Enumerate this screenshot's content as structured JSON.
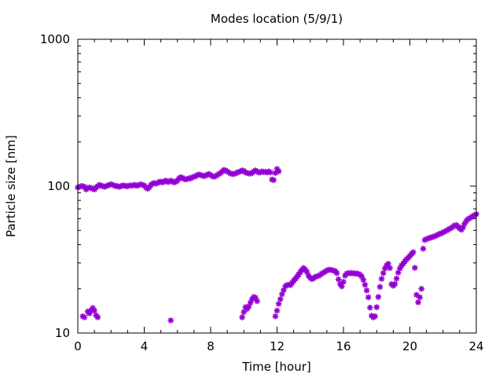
{
  "chart_data": {
    "type": "scatter",
    "title": "Modes location (5/9/1)",
    "xlabel": "Time [hour]",
    "ylabel": "Particle size [nm]",
    "xlim": [
      0,
      24
    ],
    "ylim": [
      10,
      1000
    ],
    "yscale": "log",
    "grid": false,
    "marker_color": "#9400d3",
    "x_ticks": [
      0,
      4,
      8,
      12,
      16,
      20,
      24
    ],
    "x_tick_labels": [
      "0",
      "4",
      "8",
      "12",
      "16",
      "20",
      "24"
    ],
    "y_ticks": [
      10,
      100,
      1000
    ],
    "y_tick_labels": [
      "10",
      "100",
      "1000"
    ],
    "series": [
      {
        "points": [
          [
            0.0,
            98
          ],
          [
            0.1,
            99
          ],
          [
            0.2,
            100
          ],
          [
            0.3,
            100
          ],
          [
            0.4,
            99
          ],
          [
            0.5,
            95
          ],
          [
            0.6,
            97
          ],
          [
            0.7,
            98
          ],
          [
            0.8,
            97
          ],
          [
            0.9,
            96
          ],
          [
            1.0,
            95
          ],
          [
            1.1,
            98
          ],
          [
            1.2,
            100
          ],
          [
            1.3,
            102
          ],
          [
            1.4,
            101
          ],
          [
            1.5,
            100
          ],
          [
            1.6,
            99
          ],
          [
            1.7,
            100
          ],
          [
            1.8,
            101
          ],
          [
            1.9,
            102
          ],
          [
            2.0,
            103
          ],
          [
            2.1,
            102
          ],
          [
            2.2,
            101
          ],
          [
            2.3,
            100
          ],
          [
            2.4,
            100
          ],
          [
            2.5,
            99
          ],
          [
            2.6,
            100
          ],
          [
            2.7,
            101
          ],
          [
            2.8,
            101
          ],
          [
            2.9,
            100
          ],
          [
            3.0,
            100
          ],
          [
            3.1,
            101
          ],
          [
            3.2,
            101
          ],
          [
            3.3,
            101
          ],
          [
            3.4,
            102
          ],
          [
            3.5,
            101
          ],
          [
            3.6,
            101
          ],
          [
            3.7,
            102
          ],
          [
            3.8,
            103
          ],
          [
            3.9,
            102
          ],
          [
            4.0,
            101
          ],
          [
            4.1,
            98
          ],
          [
            4.2,
            96
          ],
          [
            4.3,
            98
          ],
          [
            4.4,
            102
          ],
          [
            4.5,
            104
          ],
          [
            4.6,
            105
          ],
          [
            4.7,
            104
          ],
          [
            4.8,
            105
          ],
          [
            4.9,
            107
          ],
          [
            5.0,
            107
          ],
          [
            5.1,
            106
          ],
          [
            5.2,
            108
          ],
          [
            5.3,
            109
          ],
          [
            5.4,
            107
          ],
          [
            5.5,
            107
          ],
          [
            5.6,
            109
          ],
          [
            5.7,
            108
          ],
          [
            5.8,
            106
          ],
          [
            5.9,
            107
          ],
          [
            6.0,
            109
          ],
          [
            6.1,
            113
          ],
          [
            6.2,
            115
          ],
          [
            6.3,
            114
          ],
          [
            6.4,
            112
          ],
          [
            6.5,
            111
          ],
          [
            6.6,
            112
          ],
          [
            6.7,
            113
          ],
          [
            6.8,
            113
          ],
          [
            6.9,
            115
          ],
          [
            7.0,
            116
          ],
          [
            7.1,
            117
          ],
          [
            7.2,
            119
          ],
          [
            7.3,
            120
          ],
          [
            7.4,
            119
          ],
          [
            7.5,
            118
          ],
          [
            7.6,
            117
          ],
          [
            7.7,
            118
          ],
          [
            7.8,
            120
          ],
          [
            7.9,
            121
          ],
          [
            8.0,
            119
          ],
          [
            8.1,
            117
          ],
          [
            8.2,
            116
          ],
          [
            8.3,
            117
          ],
          [
            8.4,
            119
          ],
          [
            8.5,
            121
          ],
          [
            8.6,
            123
          ],
          [
            8.7,
            126
          ],
          [
            8.8,
            129
          ],
          [
            8.9,
            128
          ],
          [
            9.0,
            126
          ],
          [
            9.1,
            124
          ],
          [
            9.2,
            122
          ],
          [
            9.3,
            121
          ],
          [
            9.4,
            121
          ],
          [
            9.5,
            122
          ],
          [
            9.6,
            124
          ],
          [
            9.7,
            125
          ],
          [
            9.8,
            126
          ],
          [
            9.9,
            128
          ],
          [
            10.0,
            127
          ],
          [
            10.1,
            124
          ],
          [
            10.2,
            123
          ],
          [
            10.3,
            122
          ],
          [
            10.4,
            122
          ],
          [
            10.5,
            123
          ],
          [
            10.6,
            126
          ],
          [
            10.7,
            128
          ],
          [
            10.8,
            126
          ],
          [
            10.9,
            124
          ],
          [
            11.0,
            124
          ],
          [
            11.1,
            126
          ],
          [
            11.2,
            125
          ],
          [
            11.3,
            125
          ],
          [
            11.4,
            124
          ],
          [
            11.5,
            126
          ],
          [
            11.6,
            124
          ],
          [
            11.7,
            111
          ],
          [
            11.8,
            110
          ],
          [
            11.9,
            123
          ],
          [
            12.0,
            131
          ],
          [
            12.1,
            126
          ]
        ]
      },
      {
        "points": [
          [
            0.3,
            13
          ],
          [
            0.4,
            12.8
          ],
          [
            0.6,
            14
          ],
          [
            0.7,
            13.6
          ],
          [
            0.8,
            14.2
          ],
          [
            0.9,
            14.8
          ],
          [
            1.0,
            14.2
          ],
          [
            1.1,
            13.2
          ],
          [
            1.2,
            12.8
          ],
          [
            5.6,
            12.2
          ],
          [
            9.9,
            12.8
          ],
          [
            10.0,
            13.9
          ],
          [
            10.1,
            15.0
          ],
          [
            10.2,
            14.6
          ],
          [
            10.3,
            15.2
          ],
          [
            10.4,
            16.1
          ],
          [
            10.5,
            17.0
          ],
          [
            10.6,
            17.6
          ],
          [
            10.7,
            17.4
          ],
          [
            10.8,
            16.5
          ],
          [
            11.9,
            13.0
          ],
          [
            12.0,
            14.2
          ],
          [
            12.1,
            15.8
          ],
          [
            12.2,
            17.0
          ],
          [
            12.3,
            18.4
          ],
          [
            12.4,
            19.6
          ],
          [
            12.5,
            20.8
          ],
          [
            12.6,
            21.2
          ],
          [
            12.7,
            21.3
          ],
          [
            12.8,
            21.2
          ],
          [
            12.9,
            21.9
          ],
          [
            13.0,
            22.7
          ],
          [
            13.1,
            23.4
          ],
          [
            13.2,
            24.1
          ],
          [
            13.3,
            25.0
          ],
          [
            13.4,
            26.0
          ],
          [
            13.5,
            26.9
          ],
          [
            13.6,
            27.7
          ],
          [
            13.7,
            27.0
          ],
          [
            13.8,
            26.0
          ],
          [
            13.9,
            24.6
          ],
          [
            14.0,
            23.7
          ],
          [
            14.1,
            23.3
          ],
          [
            14.2,
            23.6
          ],
          [
            14.3,
            24.1
          ],
          [
            14.4,
            24.3
          ],
          [
            14.5,
            24.5
          ],
          [
            14.6,
            24.9
          ],
          [
            14.7,
            25.4
          ],
          [
            14.8,
            25.8
          ],
          [
            14.9,
            26.2
          ],
          [
            15.0,
            26.7
          ],
          [
            15.1,
            26.9
          ],
          [
            15.2,
            27.0
          ],
          [
            15.3,
            26.8
          ],
          [
            15.4,
            26.6
          ],
          [
            15.5,
            26.4
          ],
          [
            15.6,
            25.6
          ],
          [
            15.7,
            23.2
          ],
          [
            15.8,
            21.6
          ],
          [
            15.9,
            20.8
          ],
          [
            16.0,
            22.3
          ],
          [
            16.1,
            24.6
          ],
          [
            16.2,
            25.4
          ],
          [
            16.3,
            25.6
          ],
          [
            16.4,
            25.5
          ],
          [
            16.5,
            25.6
          ],
          [
            16.6,
            25.5
          ],
          [
            16.7,
            25.4
          ],
          [
            16.8,
            25.4
          ],
          [
            16.9,
            25.3
          ],
          [
            17.0,
            24.9
          ],
          [
            17.1,
            24.3
          ],
          [
            17.2,
            23.0
          ],
          [
            17.3,
            21.3
          ],
          [
            17.4,
            19.5
          ],
          [
            17.5,
            17.5
          ],
          [
            17.6,
            14.9
          ],
          [
            17.7,
            13.1
          ],
          [
            17.8,
            12.8
          ],
          [
            17.9,
            13.0
          ],
          [
            18.0,
            15.0
          ],
          [
            18.1,
            17.6
          ],
          [
            18.2,
            20.6
          ],
          [
            18.3,
            23.4
          ],
          [
            18.4,
            25.6
          ],
          [
            18.5,
            27.5
          ],
          [
            18.6,
            28.8
          ],
          [
            18.7,
            29.6
          ],
          [
            18.8,
            27.7
          ],
          [
            18.9,
            21.5
          ],
          [
            19.0,
            21.0
          ],
          [
            19.1,
            21.6
          ],
          [
            19.2,
            23.5
          ],
          [
            19.3,
            25.8
          ],
          [
            19.4,
            27.5
          ],
          [
            19.5,
            28.8
          ],
          [
            19.6,
            29.7
          ],
          [
            19.7,
            30.8
          ],
          [
            19.8,
            31.8
          ],
          [
            19.9,
            32.5
          ],
          [
            20.0,
            33.5
          ],
          [
            20.1,
            34.5
          ],
          [
            20.2,
            35.5
          ],
          [
            20.3,
            27.8
          ],
          [
            20.4,
            18.2
          ],
          [
            20.5,
            16.2
          ],
          [
            20.6,
            17.5
          ],
          [
            20.7,
            20.0
          ],
          [
            20.8,
            37.5
          ],
          [
            20.9,
            43.0
          ],
          [
            21.0,
            43.6
          ],
          [
            21.1,
            44.0
          ],
          [
            21.2,
            44.5
          ],
          [
            21.3,
            44.8
          ],
          [
            21.4,
            45.2
          ],
          [
            21.5,
            45.6
          ],
          [
            21.6,
            46.2
          ],
          [
            21.7,
            46.8
          ],
          [
            21.8,
            47.3
          ],
          [
            21.9,
            47.8
          ],
          [
            22.0,
            48.5
          ],
          [
            22.1,
            49.1
          ],
          [
            22.2,
            49.8
          ],
          [
            22.3,
            50.5
          ],
          [
            22.4,
            51.3
          ],
          [
            22.5,
            52.0
          ],
          [
            22.6,
            53.0
          ],
          [
            22.7,
            54.0
          ],
          [
            22.8,
            54.3
          ],
          [
            22.9,
            53.0
          ],
          [
            23.0,
            51.5
          ],
          [
            23.1,
            50.5
          ],
          [
            23.2,
            52.5
          ],
          [
            23.3,
            55.5
          ],
          [
            23.4,
            58.0
          ],
          [
            23.5,
            59.5
          ],
          [
            23.6,
            60.5
          ],
          [
            23.7,
            61.5
          ],
          [
            23.8,
            62.5
          ],
          [
            23.9,
            63.5
          ],
          [
            24.0,
            64.5
          ]
        ]
      }
    ]
  }
}
